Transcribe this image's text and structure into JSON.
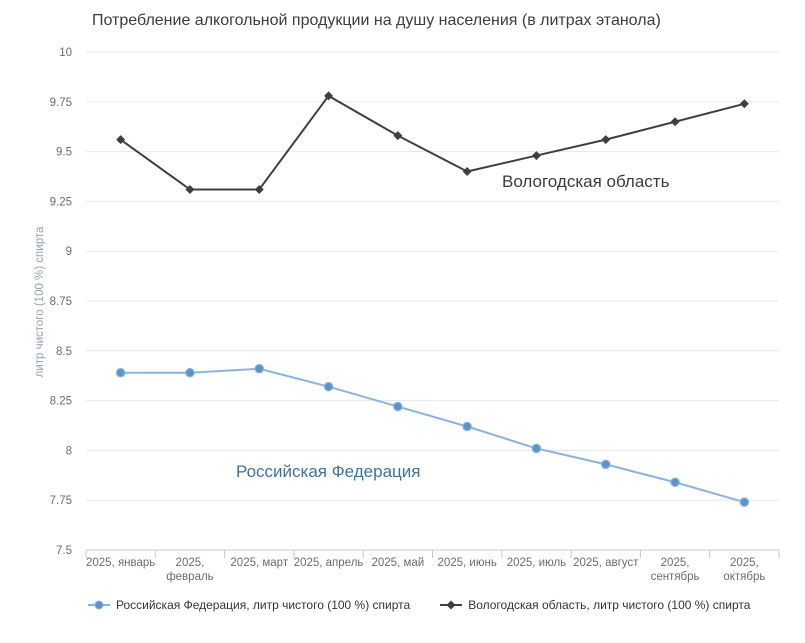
{
  "chart_data": {
    "type": "line",
    "title": "Потребление алкогольной продукции на душу населения (в литрах этанола)",
    "ylabel": "литр чистого (100 %) спирта",
    "xlabel": "",
    "ylim": [
      7.5,
      10
    ],
    "grid": true,
    "legend_position": "bottom",
    "yticks": [
      {
        "label": "10",
        "value": 10
      },
      {
        "label": "9.75",
        "value": 9.75
      },
      {
        "label": "9.5",
        "value": 9.5
      },
      {
        "label": "9.25",
        "value": 9.25
      },
      {
        "label": "9",
        "value": 9
      },
      {
        "label": "8.75",
        "value": 8.75
      },
      {
        "label": "8.5",
        "value": 8.5
      },
      {
        "label": "8.25",
        "value": 8.25
      },
      {
        "label": "8",
        "value": 8
      },
      {
        "label": "7.75",
        "value": 7.75
      },
      {
        "label": "7.5",
        "value": 7.5
      }
    ],
    "categories": [
      "2025, январь",
      "2025,\nфевраль",
      "2025, март",
      "2025, апрель",
      "2025, май",
      "2025, июнь",
      "2025, июль",
      "2025, август",
      "2025,\nсентябрь",
      "2025,\nоктябрь"
    ],
    "series": [
      {
        "id": "rf",
        "name": "Российская Федерация, литр чистого (100 %) спирта",
        "annotation": "Российская Федерация",
        "annotation_color": "#41719c",
        "color": "#8ab4dd",
        "marker": "circle",
        "marker_fill": "#5d94c7",
        "values": [
          8.39,
          8.39,
          8.41,
          8.32,
          8.22,
          8.12,
          8.01,
          7.93,
          7.84,
          7.74
        ]
      },
      {
        "id": "vologda",
        "name": "Вологодская область, литр чистого (100 %) спирта",
        "annotation": "Вологодская область",
        "annotation_color": "#3b3b3b",
        "color": "#3f3f3f",
        "marker": "diamond",
        "marker_fill": "#3f3f3f",
        "values": [
          9.56,
          9.31,
          9.31,
          9.78,
          9.58,
          9.4,
          9.48,
          9.56,
          9.65,
          9.74
        ]
      }
    ],
    "axis_colors": {
      "gridline": "#e7e7e7",
      "axis_line": "#c9c9c9",
      "tick_label": "#6b6b6b"
    }
  }
}
